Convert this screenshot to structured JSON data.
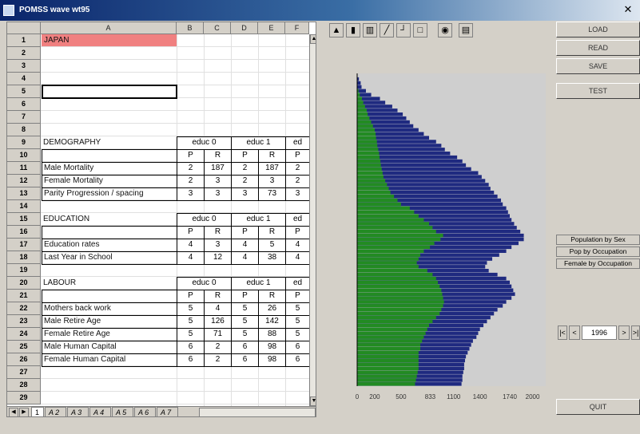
{
  "window": {
    "title": "POMSS wave wt95"
  },
  "spreadsheet": {
    "columns": [
      "A",
      "B",
      "C",
      "D",
      "E",
      "F"
    ],
    "rows": [
      "1",
      "2",
      "3",
      "4",
      "5",
      "6",
      "7",
      "8",
      "9",
      "10",
      "11",
      "12",
      "13",
      "14",
      "15",
      "16",
      "17",
      "18",
      "19",
      "20",
      "21",
      "22",
      "23",
      "24",
      "25",
      "26",
      "27",
      "28",
      "29"
    ],
    "japan_label": "JAPAN",
    "demography": {
      "label": "DEMOGRAPHY",
      "group_headers": [
        "educ 0",
        "educ 1",
        "ed"
      ],
      "subheaders": [
        "P",
        "R",
        "P",
        "R",
        "P"
      ],
      "rows": [
        {
          "label": "Male Mortality",
          "values": [
            "2",
            "187",
            "2",
            "187",
            "2"
          ]
        },
        {
          "label": "Female Mortality",
          "values": [
            "2",
            "3",
            "2",
            "3",
            "2"
          ]
        },
        {
          "label": "Parity Progression / spacing",
          "values": [
            "3",
            "3",
            "3",
            "73",
            "3"
          ]
        }
      ]
    },
    "education": {
      "label": "EDUCATION",
      "group_headers": [
        "educ 0",
        "educ 1",
        "ed"
      ],
      "subheaders": [
        "P",
        "R",
        "P",
        "R",
        "P"
      ],
      "rows": [
        {
          "label": "Education rates",
          "values": [
            "4",
            "3",
            "4",
            "5",
            "4"
          ]
        },
        {
          "label": "Last Year in School",
          "values": [
            "4",
            "12",
            "4",
            "38",
            "4"
          ]
        }
      ]
    },
    "labour": {
      "label": "LABOUR",
      "group_headers": [
        "educ 0",
        "educ 1",
        "ed"
      ],
      "subheaders": [
        "P",
        "R",
        "P",
        "R",
        "P"
      ],
      "rows": [
        {
          "label": "Mothers back work",
          "values": [
            "5",
            "4",
            "5",
            "26",
            "5"
          ]
        },
        {
          "label": "Male Retire Age",
          "values": [
            "5",
            "126",
            "5",
            "142",
            "5"
          ]
        },
        {
          "label": "Female Retire Age",
          "values": [
            "5",
            "71",
            "5",
            "88",
            "5"
          ]
        },
        {
          "label": "Male Human Capital",
          "values": [
            "6",
            "2",
            "6",
            "98",
            "6"
          ]
        },
        {
          "label": "Female Human Capital",
          "values": [
            "6",
            "2",
            "6",
            "98",
            "6"
          ]
        }
      ]
    },
    "tabs": [
      "1",
      "A 2",
      "A 3",
      "A 4",
      "A 5",
      "A 6",
      "A 7"
    ]
  },
  "toolbar": {
    "icons": [
      "chart-area-icon",
      "chart-bar-icon",
      "chart-column-icon",
      "chart-line-icon",
      "chart-step-icon",
      "chart-blank-icon",
      "globe-icon",
      "document-icon"
    ]
  },
  "chart_data": {
    "type": "bar",
    "orientation": "horizontal",
    "x_ticks": [
      "0",
      "200",
      "500",
      "833",
      "1100",
      "1400",
      "1740",
      "2000"
    ],
    "xlim": [
      0,
      2150
    ],
    "grid": false,
    "colors": {
      "inner": "#228b22",
      "outer": "#1f2a80",
      "background": "#cfcfcf"
    },
    "series": [
      {
        "values": [
          0,
          0,
          0,
          0,
          15,
          30,
          55,
          70,
          90,
          110,
          120,
          140,
          160,
          180,
          200,
          210,
          215,
          225,
          230,
          240,
          250,
          255,
          265,
          270,
          280,
          290,
          300,
          320,
          340,
          360,
          380,
          420,
          460,
          500,
          600,
          650,
          700,
          760,
          820,
          860,
          900,
          980,
          950,
          880,
          830,
          760,
          720,
          700,
          680,
          700,
          800,
          860,
          900,
          920,
          940,
          960,
          970,
          980,
          990,
          980,
          960,
          940,
          900,
          860,
          820,
          800,
          780,
          760,
          740,
          720,
          720,
          700,
          700,
          700,
          700,
          700,
          690,
          680,
          670,
          660
        ]
      },
      {
        "values": [
          0,
          20,
          40,
          50,
          100,
          160,
          260,
          320,
          400,
          460,
          520,
          560,
          600,
          640,
          700,
          760,
          820,
          900,
          960,
          1000,
          1060,
          1140,
          1200,
          1240,
          1300,
          1380,
          1420,
          1460,
          1500,
          1520,
          1560,
          1600,
          1640,
          1660,
          1700,
          1720,
          1740,
          1760,
          1790,
          1820,
          1860,
          1900,
          1900,
          1840,
          1760,
          1700,
          1620,
          1540,
          1480,
          1460,
          1500,
          1600,
          1700,
          1740,
          1760,
          1780,
          1800,
          1760,
          1700,
          1660,
          1600,
          1560,
          1520,
          1480,
          1440,
          1400,
          1380,
          1360,
          1320,
          1300,
          1280,
          1260,
          1240,
          1230,
          1220,
          1220,
          1210,
          1200,
          1200,
          1190
        ]
      }
    ]
  },
  "buttons": {
    "load": "LOAD",
    "read": "READ",
    "save": "SAVE",
    "test": "TEST",
    "quit": "QUIT"
  },
  "views": {
    "population_by_sex": "Population by Sex",
    "pop_by_occupation": "Pop by Occupation",
    "female_by_occupation": "Female by Occupation"
  },
  "year_spinner": {
    "prev_fast": "|<",
    "prev": "<",
    "value": "1996",
    "next": ">",
    "next_fast": ">|"
  }
}
